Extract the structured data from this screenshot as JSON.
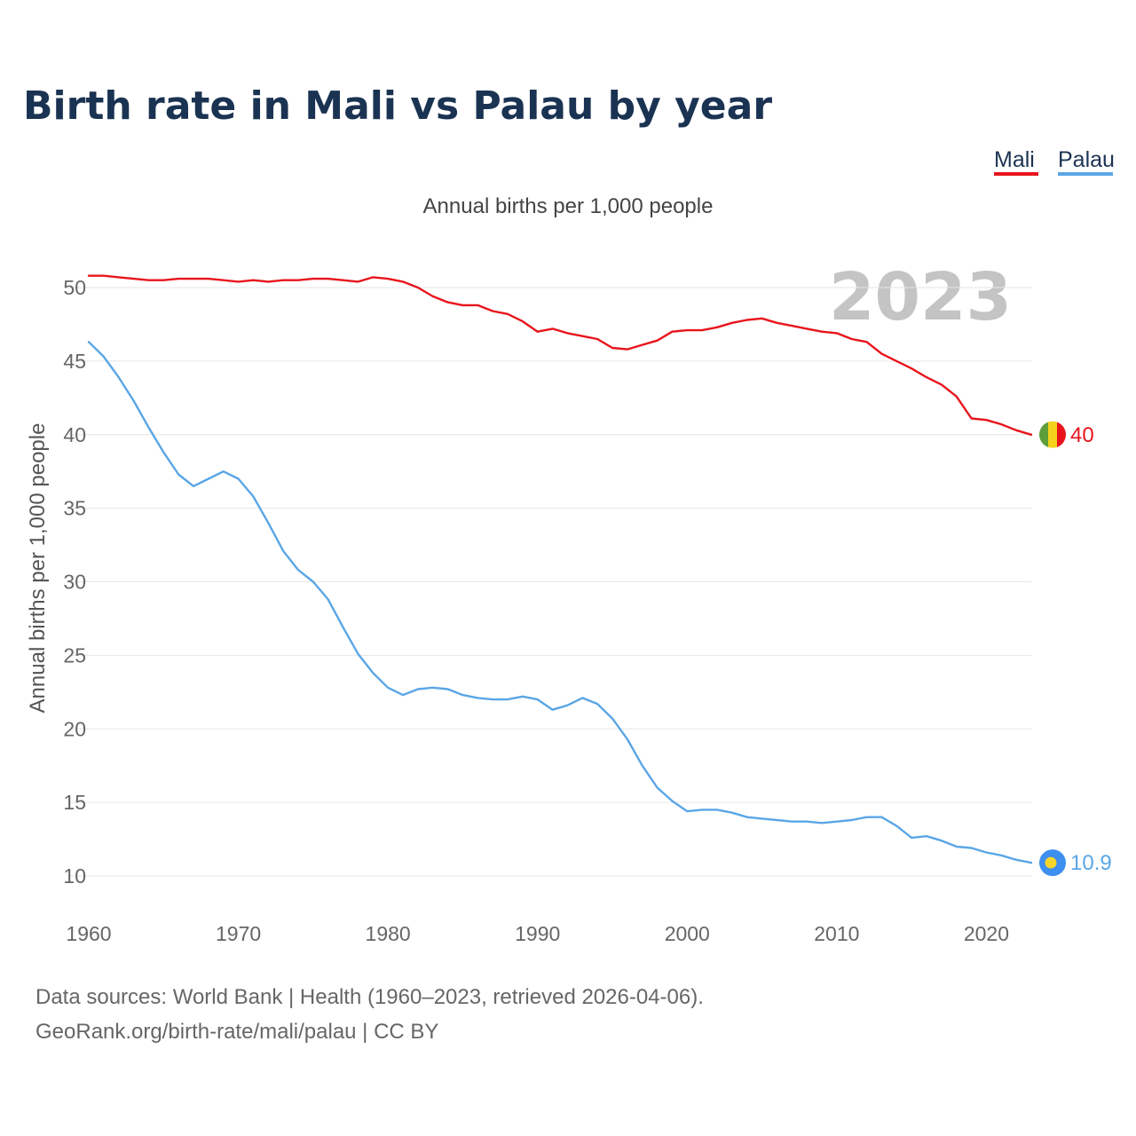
{
  "title": "Birth rate in Mali vs Palau by year",
  "subtitle": "Annual births per 1,000 people",
  "year_label": "2023",
  "source_line1": "Data sources: World Bank | Health (1960–2023, retrieved 2026-04-06).",
  "source_line2": "GeoRank.org/birth-rate/mali/palau | CC BY",
  "legend": [
    {
      "name": "Mali",
      "color": "#e8141c"
    },
    {
      "name": "Palau",
      "color": "#5aa6e6"
    }
  ],
  "flags": {
    "mali": {
      "icon": "mali-flag-icon",
      "colors": [
        "#5e9e3a",
        "#f5d21e",
        "#e8141c"
      ]
    },
    "palau": {
      "icon": "palau-flag-icon",
      "colors": [
        "#3d8ff0",
        "#f7d52a"
      ]
    }
  },
  "chart_data": {
    "type": "line",
    "title": "Birth rate in Mali vs Palau by year",
    "xlabel": "",
    "ylabel": "Annual births per 1,000 people",
    "xlim": [
      1960,
      2023
    ],
    "ylim": [
      10,
      50
    ],
    "xticks": [
      1960,
      1970,
      1980,
      1990,
      2000,
      2010,
      2020
    ],
    "yticks": [
      10,
      15,
      20,
      25,
      30,
      35,
      40,
      45,
      50
    ],
    "x": [
      1960,
      1961,
      1962,
      1963,
      1964,
      1965,
      1966,
      1967,
      1968,
      1969,
      1970,
      1971,
      1972,
      1973,
      1974,
      1975,
      1976,
      1977,
      1978,
      1979,
      1980,
      1981,
      1982,
      1983,
      1984,
      1985,
      1986,
      1987,
      1988,
      1989,
      1990,
      1991,
      1992,
      1993,
      1994,
      1995,
      1996,
      1997,
      1998,
      1999,
      2000,
      2001,
      2002,
      2003,
      2004,
      2005,
      2006,
      2007,
      2008,
      2009,
      2010,
      2011,
      2012,
      2013,
      2014,
      2015,
      2016,
      2017,
      2018,
      2019,
      2020,
      2021,
      2022,
      2023
    ],
    "series": [
      {
        "name": "Mali",
        "color": "#e8141c",
        "end_label": "40",
        "values": [
          50.8,
          50.8,
          50.7,
          50.6,
          50.5,
          50.5,
          50.6,
          50.6,
          50.6,
          50.5,
          50.4,
          50.5,
          50.4,
          50.5,
          50.5,
          50.6,
          50.6,
          50.5,
          50.4,
          50.7,
          50.6,
          50.4,
          50.0,
          49.4,
          49.0,
          48.8,
          48.8,
          48.4,
          48.2,
          47.7,
          47.0,
          47.2,
          46.9,
          46.7,
          46.5,
          45.9,
          45.8,
          46.1,
          46.4,
          47.0,
          47.1,
          47.1,
          47.3,
          47.6,
          47.8,
          47.9,
          47.6,
          47.4,
          47.2,
          47.0,
          46.9,
          46.5,
          46.3,
          45.5,
          45.0,
          44.5,
          43.9,
          43.4,
          42.6,
          41.1,
          41.0,
          40.7,
          40.3,
          40.0
        ]
      },
      {
        "name": "Palau",
        "color": "#5aa6e6",
        "end_label": "10.9",
        "values": [
          46.3,
          45.3,
          43.9,
          42.3,
          40.5,
          38.8,
          37.3,
          36.5,
          37.0,
          37.5,
          37.0,
          35.8,
          34.0,
          32.1,
          30.8,
          30.0,
          28.8,
          26.9,
          25.1,
          23.8,
          22.8,
          22.3,
          22.7,
          22.8,
          22.7,
          22.3,
          22.1,
          22.0,
          22.0,
          22.2,
          22.0,
          21.3,
          21.6,
          22.1,
          21.7,
          20.7,
          19.3,
          17.5,
          16.0,
          15.1,
          14.4,
          14.5,
          14.5,
          14.3,
          14.0,
          13.9,
          13.8,
          13.7,
          13.7,
          13.6,
          13.7,
          13.8,
          14.0,
          14.0,
          13.4,
          12.6,
          12.7,
          12.4,
          12.0,
          11.9,
          11.6,
          11.4,
          11.1,
          10.9
        ]
      }
    ]
  }
}
